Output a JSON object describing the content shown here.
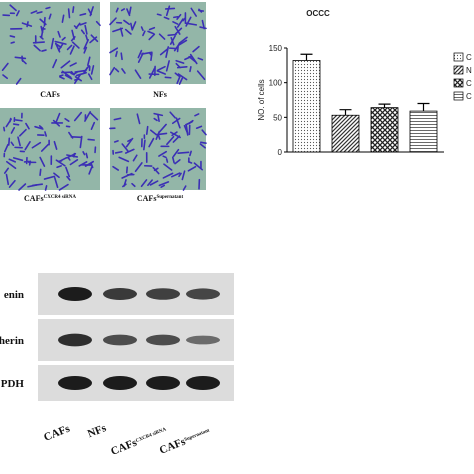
{
  "panels": {
    "migration": {
      "images": [
        {
          "label": "CAFs"
        },
        {
          "label": "NFs"
        },
        {
          "label": "CAFs",
          "sup": "CXCR4 siRNA"
        },
        {
          "label": "CAFs",
          "sup": "Supernatant"
        }
      ]
    }
  },
  "chart_data": {
    "type": "bar",
    "title": "OCCC",
    "y_label": "NO. of cells",
    "ylim": [
      0,
      150
    ],
    "yticks": [
      0,
      50,
      100,
      150
    ],
    "series": [
      {
        "name": "C",
        "values": [
          132
        ],
        "errors": [
          9
        ],
        "pattern": "dots"
      },
      {
        "name": "N",
        "values": [
          53
        ],
        "errors": [
          8
        ],
        "pattern": "diag"
      },
      {
        "name": "C",
        "values": [
          64
        ],
        "errors": [
          5
        ],
        "pattern": "check"
      },
      {
        "name": "C",
        "values": [
          59
        ],
        "errors": [
          11
        ],
        "pattern": "hlines"
      }
    ]
  },
  "blot": {
    "rows": [
      "enin",
      "dherin",
      "PDH"
    ],
    "lanes": [
      {
        "label": "CAFs"
      },
      {
        "label": "NFs"
      },
      {
        "label": "CAFs",
        "sup": "CXCR4 siRNA"
      },
      {
        "label": "CAFs",
        "sup": "Supernatant"
      }
    ]
  }
}
